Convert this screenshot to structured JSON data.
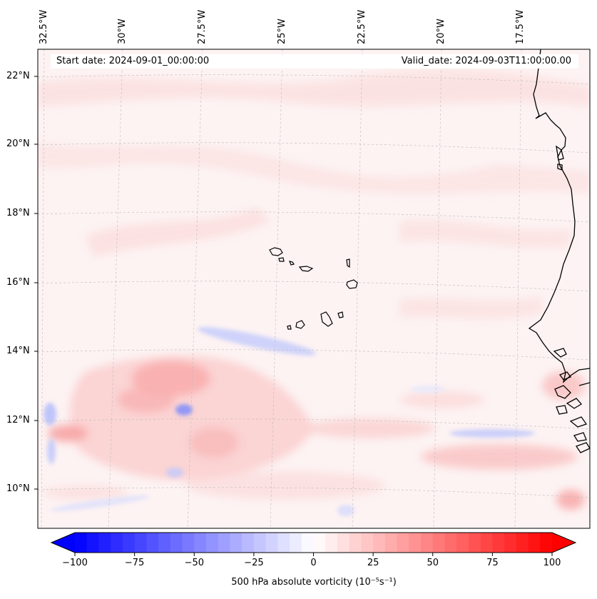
{
  "header": {
    "start_date": "Start date: 2024-09-01_00:00:00",
    "valid_date": "Valid_date: 2024-09-03T11:00:00.00"
  },
  "longitude_labels": [
    "32.5°W",
    "30°W",
    "27.5°W",
    "25°W",
    "22.5°W",
    "20°W",
    "17.5°W"
  ],
  "latitude_labels": [
    "22°N",
    "20°N",
    "18°N",
    "16°N",
    "14°N",
    "12°N",
    "10°N"
  ],
  "colorbar": {
    "title": "500 hPa absolute vorticity (10⁻⁵s⁻¹)",
    "min": -100,
    "max": 100,
    "tick_labels": [
      "−100",
      "−75",
      "−50",
      "−25",
      "0",
      "25",
      "50",
      "75",
      "100"
    ],
    "neg_color": "#0000ff",
    "pos_color": "#ff0000",
    "mid_color": "#ffffff"
  },
  "colors": {
    "ocean_background": "#fdf3f3",
    "coastline": "#000000",
    "gridline": "#bbbbbb"
  }
}
